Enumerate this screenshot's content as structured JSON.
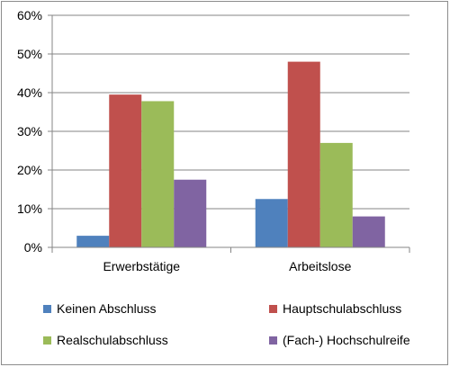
{
  "chart_data": {
    "type": "bar",
    "categories": [
      "Erwerbstätige",
      "Arbeitslose"
    ],
    "series": [
      {
        "name": "Keinen Abschluss",
        "values": [
          3,
          12.5
        ],
        "color": "#4f81bd"
      },
      {
        "name": "Hauptschulabschluss",
        "values": [
          39.5,
          48
        ],
        "color": "#c0504d"
      },
      {
        "name": "Realschulabschluss",
        "values": [
          37.8,
          27
        ],
        "color": "#9bbb59"
      },
      {
        "name": "(Fach-) Hochschulreife",
        "values": [
          17.5,
          8
        ],
        "color": "#8064a2"
      }
    ],
    "ylim": [
      0,
      60
    ],
    "yticks": [
      0,
      10,
      20,
      30,
      40,
      50,
      60
    ],
    "ytick_labels": [
      "0%",
      "10%",
      "20%",
      "30%",
      "40%",
      "50%",
      "60%"
    ],
    "grid": true,
    "legend_position": "bottom",
    "title": "",
    "xlabel": "",
    "ylabel": ""
  }
}
